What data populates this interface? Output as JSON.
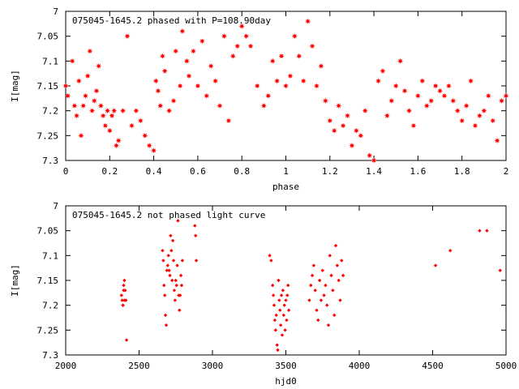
{
  "chart_data": [
    {
      "type": "scatter",
      "title": "075045-1645.2 phased with P=108.90day",
      "xlabel": "phase",
      "ylabel": "I[mag]",
      "xlim": [
        0,
        2
      ],
      "ylim": [
        7.3,
        7.0
      ],
      "y_inverted": true,
      "x_ticks": [
        "0",
        "0.2",
        "0.4",
        "0.6",
        "0.8",
        "1",
        "1.2",
        "1.4",
        "1.6",
        "1.8",
        "2"
      ],
      "y_ticks": [
        "7",
        "7.05",
        "7.1",
        "7.15",
        "7.2",
        "7.25",
        "7.3"
      ],
      "marker": "star",
      "color": "#ff0000",
      "series": [
        {
          "points": [
            [
              0.0,
              7.15
            ],
            [
              0.01,
              7.17
            ],
            [
              0.03,
              7.1
            ],
            [
              0.04,
              7.19
            ],
            [
              0.05,
              7.21
            ],
            [
              0.06,
              7.14
            ],
            [
              0.07,
              7.25
            ],
            [
              0.08,
              7.19
            ],
            [
              0.09,
              7.17
            ],
            [
              0.1,
              7.13
            ],
            [
              0.11,
              7.08
            ],
            [
              0.12,
              7.2
            ],
            [
              0.13,
              7.18
            ],
            [
              0.14,
              7.16
            ],
            [
              0.15,
              7.11
            ],
            [
              0.16,
              7.19
            ],
            [
              0.17,
              7.21
            ],
            [
              0.18,
              7.23
            ],
            [
              0.19,
              7.2
            ],
            [
              0.2,
              7.24
            ],
            [
              0.21,
              7.21
            ],
            [
              0.22,
              7.2
            ],
            [
              0.23,
              7.27
            ],
            [
              0.24,
              7.26
            ],
            [
              0.26,
              7.2
            ],
            [
              0.28,
              7.05
            ],
            [
              0.3,
              7.23
            ],
            [
              0.32,
              7.2
            ],
            [
              0.34,
              7.22
            ],
            [
              0.36,
              7.25
            ],
            [
              0.38,
              7.27
            ],
            [
              0.4,
              7.28
            ],
            [
              0.41,
              7.14
            ],
            [
              0.42,
              7.16
            ],
            [
              0.43,
              7.19
            ],
            [
              0.44,
              7.09
            ],
            [
              0.45,
              7.12
            ],
            [
              0.47,
              7.2
            ],
            [
              0.49,
              7.18
            ],
            [
              0.5,
              7.08
            ],
            [
              0.52,
              7.15
            ],
            [
              0.53,
              7.04
            ],
            [
              0.55,
              7.1
            ],
            [
              0.56,
              7.13
            ],
            [
              0.58,
              7.08
            ],
            [
              0.6,
              7.15
            ],
            [
              0.62,
              7.06
            ],
            [
              0.64,
              7.17
            ],
            [
              0.66,
              7.11
            ],
            [
              0.68,
              7.14
            ],
            [
              0.7,
              7.19
            ],
            [
              0.72,
              7.05
            ],
            [
              0.74,
              7.22
            ],
            [
              0.76,
              7.09
            ],
            [
              0.78,
              7.07
            ],
            [
              0.8,
              7.03
            ],
            [
              0.82,
              7.05
            ],
            [
              0.84,
              7.07
            ],
            [
              0.87,
              7.15
            ],
            [
              0.9,
              7.19
            ],
            [
              0.92,
              7.17
            ],
            [
              0.94,
              7.1
            ],
            [
              0.96,
              7.14
            ],
            [
              0.98,
              7.09
            ],
            [
              1.0,
              7.15
            ],
            [
              1.02,
              7.13
            ],
            [
              1.04,
              7.05
            ],
            [
              1.06,
              7.09
            ],
            [
              1.08,
              7.14
            ],
            [
              1.1,
              7.02
            ],
            [
              1.12,
              7.07
            ],
            [
              1.14,
              7.15
            ],
            [
              1.16,
              7.11
            ],
            [
              1.18,
              7.18
            ],
            [
              1.2,
              7.22
            ],
            [
              1.22,
              7.24
            ],
            [
              1.24,
              7.19
            ],
            [
              1.26,
              7.23
            ],
            [
              1.28,
              7.21
            ],
            [
              1.3,
              7.27
            ],
            [
              1.32,
              7.24
            ],
            [
              1.34,
              7.25
            ],
            [
              1.36,
              7.2
            ],
            [
              1.38,
              7.29
            ],
            [
              1.4,
              7.3
            ],
            [
              1.42,
              7.14
            ],
            [
              1.44,
              7.12
            ],
            [
              1.46,
              7.21
            ],
            [
              1.48,
              7.18
            ],
            [
              1.5,
              7.15
            ],
            [
              1.52,
              7.1
            ],
            [
              1.54,
              7.16
            ],
            [
              1.56,
              7.2
            ],
            [
              1.58,
              7.23
            ],
            [
              1.6,
              7.17
            ],
            [
              1.62,
              7.14
            ],
            [
              1.64,
              7.19
            ],
            [
              1.66,
              7.18
            ],
            [
              1.68,
              7.15
            ],
            [
              1.7,
              7.16
            ],
            [
              1.72,
              7.17
            ],
            [
              1.74,
              7.15
            ],
            [
              1.76,
              7.18
            ],
            [
              1.78,
              7.2
            ],
            [
              1.8,
              7.22
            ],
            [
              1.82,
              7.19
            ],
            [
              1.84,
              7.14
            ],
            [
              1.86,
              7.23
            ],
            [
              1.88,
              7.21
            ],
            [
              1.9,
              7.2
            ],
            [
              1.92,
              7.17
            ],
            [
              1.94,
              7.22
            ],
            [
              1.96,
              7.26
            ],
            [
              1.98,
              7.18
            ],
            [
              2.0,
              7.17
            ]
          ]
        }
      ]
    },
    {
      "type": "scatter",
      "title": "075045-1645.2 not phased light curve",
      "xlabel": "hjd0",
      "ylabel": "I[mag]",
      "xlim": [
        2000,
        5000
      ],
      "ylim": [
        7.3,
        7.0
      ],
      "y_inverted": true,
      "x_ticks": [
        "2000",
        "2500",
        "3000",
        "3500",
        "4000",
        "4500",
        "5000"
      ],
      "y_ticks": [
        "7",
        "7.05",
        "7.1",
        "7.15",
        "7.2",
        "7.25",
        "7.3"
      ],
      "marker": "diamond",
      "color": "#ff0000",
      "series": [
        {
          "points": [
            [
              2380,
              7.18
            ],
            [
              2385,
              7.19
            ],
            [
              2390,
              7.2
            ],
            [
              2395,
              7.16
            ],
            [
              2400,
              7.15
            ],
            [
              2405,
              7.17
            ],
            [
              2410,
              7.19
            ],
            [
              2415,
              7.27
            ],
            [
              2390,
              7.2
            ],
            [
              2395,
              7.17
            ],
            [
              2400,
              7.19
            ],
            [
              2660,
              7.09
            ],
            [
              2665,
              7.11
            ],
            [
              2670,
              7.16
            ],
            [
              2675,
              7.18
            ],
            [
              2680,
              7.22
            ],
            [
              2685,
              7.24
            ],
            [
              2690,
              7.13
            ],
            [
              2695,
              7.12
            ],
            [
              2700,
              7.1
            ],
            [
              2705,
              7.13
            ],
            [
              2710,
              7.14
            ],
            [
              2715,
              7.06
            ],
            [
              2720,
              7.09
            ],
            [
              2725,
              7.15
            ],
            [
              2730,
              7.07
            ],
            [
              2735,
              7.11
            ],
            [
              2740,
              7.17
            ],
            [
              2745,
              7.19
            ],
            [
              2750,
              7.15
            ],
            [
              2755,
              7.16
            ],
            [
              2760,
              7.12
            ],
            [
              2765,
              7.03
            ],
            [
              2770,
              7.18
            ],
            [
              2775,
              7.21
            ],
            [
              2780,
              7.18
            ],
            [
              2785,
              7.14
            ],
            [
              2790,
              7.16
            ],
            [
              2795,
              7.11
            ],
            [
              2880,
              7.04
            ],
            [
              2885,
              7.06
            ],
            [
              2890,
              7.11
            ],
            [
              3390,
              7.1
            ],
            [
              3400,
              7.11
            ],
            [
              3410,
              7.16
            ],
            [
              3415,
              7.18
            ],
            [
              3420,
              7.2
            ],
            [
              3425,
              7.23
            ],
            [
              3430,
              7.25
            ],
            [
              3435,
              7.22
            ],
            [
              3440,
              7.28
            ],
            [
              3445,
              7.29
            ],
            [
              3450,
              7.15
            ],
            [
              3455,
              7.19
            ],
            [
              3460,
              7.21
            ],
            [
              3465,
              7.24
            ],
            [
              3470,
              7.18
            ],
            [
              3475,
              7.26
            ],
            [
              3480,
              7.17
            ],
            [
              3485,
              7.22
            ],
            [
              3490,
              7.2
            ],
            [
              3495,
              7.25
            ],
            [
              3500,
              7.19
            ],
            [
              3505,
              7.23
            ],
            [
              3510,
              7.18
            ],
            [
              3515,
              7.16
            ],
            [
              3520,
              7.21
            ],
            [
              3660,
              7.19
            ],
            [
              3670,
              7.16
            ],
            [
              3680,
              7.14
            ],
            [
              3690,
              7.12
            ],
            [
              3700,
              7.17
            ],
            [
              3710,
              7.21
            ],
            [
              3720,
              7.23
            ],
            [
              3730,
              7.15
            ],
            [
              3740,
              7.19
            ],
            [
              3750,
              7.13
            ],
            [
              3760,
              7.18
            ],
            [
              3770,
              7.16
            ],
            [
              3780,
              7.2
            ],
            [
              3790,
              7.24
            ],
            [
              3800,
              7.1
            ],
            [
              3810,
              7.14
            ],
            [
              3820,
              7.17
            ],
            [
              3830,
              7.22
            ],
            [
              3840,
              7.08
            ],
            [
              3850,
              7.12
            ],
            [
              3860,
              7.15
            ],
            [
              3870,
              7.19
            ],
            [
              3880,
              7.11
            ],
            [
              3890,
              7.14
            ],
            [
              4520,
              7.12
            ],
            [
              4620,
              7.09
            ],
            [
              4820,
              7.05
            ],
            [
              4870,
              7.05
            ],
            [
              4960,
              7.13
            ]
          ]
        }
      ]
    }
  ]
}
